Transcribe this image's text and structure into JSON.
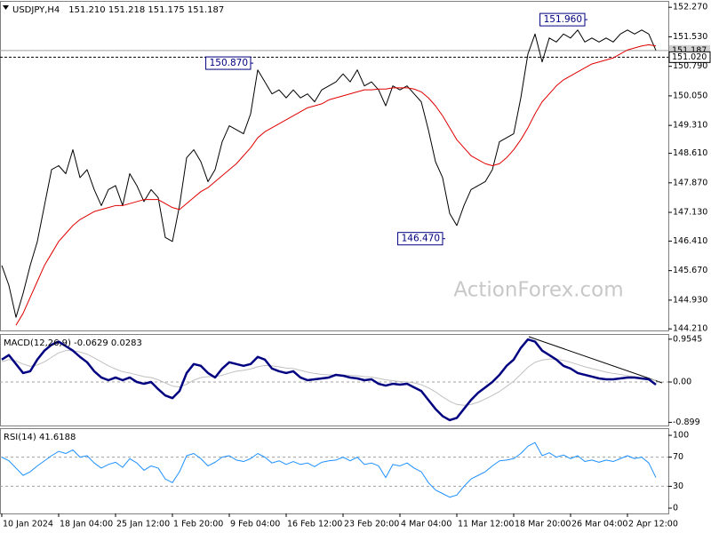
{
  "chart_data": [
    {
      "type": "line",
      "title": "USDJPY,H4",
      "subtitle": "151.210 151.218 151.175 151.187",
      "watermark": "ActionForex.com",
      "ylim": [
        144.17,
        152.43
      ],
      "yticks": [
        {
          "value": 152.27,
          "label": "152.270"
        },
        {
          "value": 151.53,
          "label": "151.530"
        },
        {
          "value": 150.79,
          "label": "150.790"
        },
        {
          "value": 150.05,
          "label": "150.050"
        },
        {
          "value": 149.31,
          "label": "149.310"
        },
        {
          "value": 148.61,
          "label": "148.610"
        },
        {
          "value": 147.87,
          "label": "147.870"
        },
        {
          "value": 147.13,
          "label": "147.130"
        },
        {
          "value": 146.41,
          "label": "146.410"
        },
        {
          "value": 145.67,
          "label": "145.670"
        },
        {
          "value": 144.93,
          "label": "144.930"
        },
        {
          "value": 144.21,
          "label": "144.210"
        }
      ],
      "series": [
        {
          "color": "#000000",
          "width": 1,
          "values": [
            145.8,
            145.3,
            144.5,
            145.1,
            145.8,
            146.4,
            147.3,
            148.2,
            148.3,
            148.1,
            148.7,
            148.0,
            148.2,
            147.7,
            147.3,
            147.7,
            147.8,
            147.3,
            148.1,
            147.8,
            147.4,
            147.7,
            147.5,
            146.5,
            146.4,
            147.3,
            148.5,
            148.7,
            148.4,
            147.9,
            148.2,
            148.9,
            149.3,
            149.2,
            149.1,
            149.6,
            150.7,
            150.4,
            150.1,
            150.2,
            150.0,
            150.2,
            150.0,
            150.1,
            149.9,
            150.2,
            150.3,
            150.4,
            150.6,
            150.4,
            150.7,
            150.3,
            150.4,
            150.2,
            149.8,
            150.3,
            150.2,
            150.3,
            150.1,
            149.9,
            149.2,
            148.4,
            148.0,
            147.1,
            146.8,
            147.3,
            147.7,
            147.8,
            147.9,
            148.2,
            148.9,
            149.0,
            149.1,
            150.0,
            151.1,
            151.6,
            150.9,
            151.5,
            151.4,
            151.6,
            151.5,
            151.7,
            151.4,
            151.5,
            151.4,
            151.5,
            151.4,
            151.6,
            151.7,
            151.6,
            151.7,
            151.6,
            151.19
          ]
        },
        {
          "color": "#e00000",
          "width": 1,
          "values": [
            null,
            null,
            144.3,
            144.6,
            145.0,
            145.4,
            145.8,
            146.1,
            146.4,
            146.6,
            146.8,
            146.95,
            147.05,
            147.15,
            147.2,
            147.25,
            147.3,
            147.3,
            147.35,
            147.4,
            147.45,
            147.45,
            147.45,
            147.35,
            147.25,
            147.2,
            147.35,
            147.5,
            147.65,
            147.75,
            147.9,
            148.05,
            148.2,
            148.35,
            148.55,
            148.75,
            149.0,
            149.15,
            149.25,
            149.35,
            149.45,
            149.55,
            149.65,
            149.75,
            149.8,
            149.85,
            149.95,
            150.0,
            150.05,
            150.1,
            150.15,
            150.2,
            150.2,
            150.22,
            150.22,
            150.25,
            150.25,
            150.25,
            150.22,
            150.15,
            150.0,
            149.8,
            149.55,
            149.25,
            148.95,
            148.75,
            148.55,
            148.45,
            148.35,
            148.3,
            148.35,
            148.5,
            148.7,
            148.95,
            149.25,
            149.6,
            149.9,
            150.1,
            150.3,
            150.45,
            150.55,
            150.65,
            150.75,
            150.85,
            150.9,
            150.95,
            151.0,
            151.1,
            151.2,
            151.25,
            151.3,
            151.33,
            151.3
          ]
        }
      ],
      "levels": [
        {
          "value": 151.187,
          "label": "151.187",
          "style": "solid"
        },
        {
          "value": 151.02,
          "label": "151.020",
          "style": "dashed"
        }
      ],
      "annotations": [
        {
          "index": 82,
          "value": 151.96,
          "label": "151.960"
        },
        {
          "index": 35,
          "value": 150.87,
          "label": "150.870"
        },
        {
          "index": 62,
          "value": 146.47,
          "label": "146.470"
        }
      ]
    },
    {
      "type": "line",
      "title": "MACD(12,26,9) -0.0629 0.0283",
      "ylim": [
        -0.97,
        1.07
      ],
      "yticks": [
        0.9545,
        {
          "value": 0,
          "label": "0.00"
        },
        -0.899
      ],
      "zero_line": true,
      "series": [
        {
          "color": "#c0c0c0",
          "width": 1,
          "values": [
            0.45,
            0.5,
            0.47,
            0.4,
            0.35,
            0.38,
            0.45,
            0.55,
            0.65,
            0.7,
            0.7,
            0.67,
            0.62,
            0.54,
            0.45,
            0.36,
            0.29,
            0.23,
            0.2,
            0.16,
            0.12,
            0.1,
            0.05,
            -0.02,
            -0.09,
            -0.11,
            -0.05,
            0.04,
            0.1,
            0.12,
            0.12,
            0.15,
            0.2,
            0.24,
            0.26,
            0.29,
            0.34,
            0.37,
            0.36,
            0.34,
            0.31,
            0.3,
            0.26,
            0.22,
            0.19,
            0.17,
            0.16,
            0.16,
            0.16,
            0.15,
            0.14,
            0.12,
            0.11,
            0.08,
            0.05,
            0.03,
            0.01,
            0,
            -0.02,
            -0.06,
            -0.13,
            -0.22,
            -0.33,
            -0.43,
            -0.5,
            -0.52,
            -0.5,
            -0.45,
            -0.38,
            -0.3,
            -0.21,
            -0.1,
            0.02,
            0.17,
            0.33,
            0.44,
            0.49,
            0.51,
            0.51,
            0.48,
            0.44,
            0.39,
            0.34,
            0.3,
            0.26,
            0.22,
            0.19,
            0.17,
            0.14,
            0.12,
            0.09,
            0.07,
            0.03
          ]
        },
        {
          "color": "#000080",
          "width": 2.5,
          "values": [
            0.5,
            0.6,
            0.4,
            0.2,
            0.24,
            0.5,
            0.7,
            0.83,
            0.9,
            0.8,
            0.7,
            0.56,
            0.44,
            0.24,
            0.1,
            0.04,
            0.1,
            0.04,
            0.1,
            0,
            -0.04,
            0,
            -0.16,
            -0.3,
            -0.36,
            -0.2,
            0.2,
            0.4,
            0.36,
            0.2,
            0.1,
            0.3,
            0.44,
            0.4,
            0.36,
            0.4,
            0.56,
            0.5,
            0.3,
            0.24,
            0.2,
            0.24,
            0.1,
            0.04,
            0.06,
            0.08,
            0.1,
            0.16,
            0.14,
            0.1,
            0.08,
            0.04,
            0.06,
            -0.04,
            -0.08,
            -0.04,
            -0.06,
            -0.04,
            -0.12,
            -0.2,
            -0.4,
            -0.6,
            -0.76,
            -0.85,
            -0.8,
            -0.6,
            -0.4,
            -0.24,
            -0.12,
            0,
            0.16,
            0.36,
            0.5,
            0.76,
            0.95,
            0.9,
            0.7,
            0.6,
            0.5,
            0.36,
            0.3,
            0.2,
            0.16,
            0.12,
            0.08,
            0.06,
            0.06,
            0.08,
            0.1,
            0.1,
            0.08,
            0.06,
            -0.06
          ]
        }
      ]
    },
    {
      "type": "line",
      "title": "RSI(14) 41.6188",
      "ylim": [
        -7.3,
        109.8
      ],
      "yticks": [
        100,
        70,
        30,
        0
      ],
      "levels": [
        70,
        30
      ],
      "series": [
        {
          "color": "#1e90ff",
          "width": 1,
          "values": [
            70,
            65,
            55,
            45,
            50,
            58,
            65,
            72,
            78,
            75,
            80,
            70,
            72,
            62,
            55,
            60,
            63,
            56,
            68,
            62,
            52,
            58,
            55,
            40,
            35,
            50,
            72,
            75,
            68,
            58,
            63,
            70,
            72,
            66,
            64,
            68,
            75,
            70,
            62,
            65,
            60,
            64,
            60,
            62,
            57,
            63,
            65,
            66,
            70,
            65,
            70,
            60,
            62,
            58,
            42,
            60,
            58,
            62,
            55,
            50,
            35,
            25,
            20,
            15,
            18,
            30,
            40,
            45,
            50,
            58,
            65,
            66,
            68,
            75,
            85,
            90,
            72,
            76,
            70,
            73,
            68,
            72,
            64,
            66,
            63,
            66,
            64,
            68,
            72,
            68,
            70,
            62,
            42
          ]
        }
      ],
      "categories": [
        "10 Jan 2024",
        null,
        null,
        null,
        null,
        null,
        null,
        null,
        "18 Jan 04:00",
        null,
        null,
        null,
        null,
        null,
        null,
        null,
        "25 Jan 12:00",
        null,
        null,
        null,
        null,
        null,
        null,
        null,
        "1 Feb 20:00",
        null,
        null,
        null,
        null,
        null,
        null,
        null,
        "9 Feb 04:00",
        null,
        null,
        null,
        null,
        null,
        null,
        null,
        "16 Feb 12:00",
        null,
        null,
        null,
        null,
        null,
        null,
        null,
        "23 Feb 20:00",
        null,
        null,
        null,
        null,
        null,
        null,
        null,
        "4 Mar 04:00",
        null,
        null,
        null,
        null,
        null,
        null,
        null,
        "11 Mar 12:00",
        null,
        null,
        null,
        null,
        null,
        null,
        null,
        "18 Mar 20:00",
        null,
        null,
        null,
        null,
        null,
        null,
        null,
        "26 Mar 04:00",
        null,
        null,
        null,
        null,
        null,
        null,
        null,
        "2 Apr 12:00",
        null,
        null,
        null,
        null
      ]
    }
  ]
}
